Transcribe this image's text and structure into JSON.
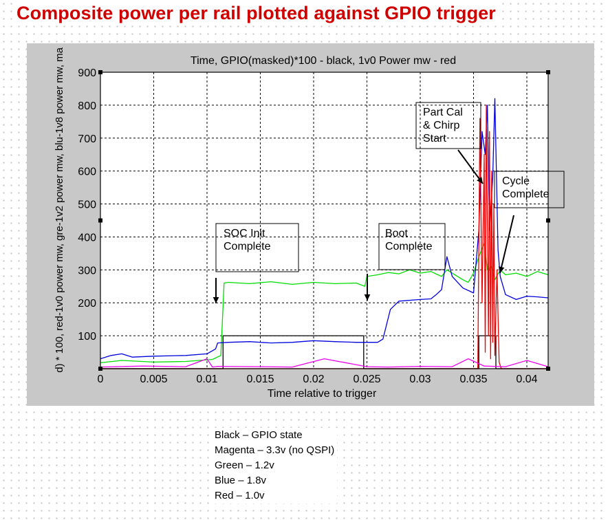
{
  "slide": {
    "title": "Composite power per rail plotted against GPIO trigger"
  },
  "legend_notes": [
    "Black – GPIO state",
    "Magenta – 3.3v (no QSPI)",
    "Green – 1.2v",
    "Blue – 1.8v",
    "Red – 1.0v"
  ],
  "chart_data": {
    "type": "line",
    "title": "Time, GPIO(masked)*100 - black, 1v0 Power mw - red",
    "xlabel": "Time relative to trigger",
    "ylabel": "d) * 100, red-1v0 power mw, gre-1v2 power mw,  blu-1v8 power mw,  ma",
    "xlim": [
      0,
      0.042
    ],
    "ylim": [
      0,
      900
    ],
    "xticks": [
      0,
      0.005,
      0.01,
      0.015,
      0.02,
      0.025,
      0.03,
      0.035,
      0.04
    ],
    "xtick_labels": [
      "0",
      "0.005",
      "0.01",
      "0.015",
      "0.02",
      "0.025",
      "0.03",
      "0.035",
      "0.04"
    ],
    "yticks": [
      100,
      200,
      300,
      400,
      500,
      600,
      700,
      800,
      900
    ],
    "ytick_labels": [
      "100",
      "200",
      "300",
      "400",
      "500",
      "600",
      "700",
      "800",
      "900"
    ],
    "grid": true,
    "series": [
      {
        "color": "#000000",
        "x": [
          0,
          0.0115,
          0.0115,
          0.0247,
          0.0247,
          0.0355,
          0.0355,
          0.0371,
          0.0371,
          0.042
        ],
        "y": [
          0,
          0,
          100,
          100,
          0,
          0,
          100,
          100,
          0,
          0
        ]
      },
      {
        "color": "#00dd00",
        "x": [
          0,
          0.002,
          0.005,
          0.008,
          0.0105,
          0.0113,
          0.0116,
          0.012,
          0.014,
          0.016,
          0.018,
          0.02,
          0.022,
          0.024,
          0.0248,
          0.025,
          0.026,
          0.027,
          0.028,
          0.029,
          0.03,
          0.031,
          0.032,
          0.0325,
          0.033,
          0.034,
          0.0345,
          0.035,
          0.0355,
          0.036,
          0.0363,
          0.0367,
          0.037,
          0.0375,
          0.038,
          0.039,
          0.04,
          0.041,
          0.042
        ],
        "y": [
          18,
          25,
          20,
          22,
          28,
          40,
          260,
          262,
          258,
          264,
          256,
          262,
          258,
          260,
          250,
          280,
          285,
          292,
          288,
          300,
          290,
          295,
          280,
          300,
          290,
          270,
          262,
          290,
          340,
          380,
          300,
          310,
          270,
          300,
          285,
          290,
          280,
          295,
          285
        ]
      },
      {
        "color": "#0000dd",
        "x": [
          0,
          0.001,
          0.002,
          0.003,
          0.005,
          0.008,
          0.01,
          0.0108,
          0.011,
          0.012,
          0.014,
          0.016,
          0.018,
          0.02,
          0.022,
          0.024,
          0.026,
          0.0265,
          0.0272,
          0.028,
          0.03,
          0.031,
          0.0315,
          0.032,
          0.0325,
          0.033,
          0.034,
          0.035,
          0.0355,
          0.0358,
          0.0361,
          0.0363,
          0.0365,
          0.0368,
          0.037,
          0.0373,
          0.0375,
          0.038,
          0.039,
          0.04,
          0.041,
          0.042
        ],
        "y": [
          30,
          40,
          45,
          35,
          38,
          40,
          45,
          60,
          78,
          80,
          82,
          78,
          80,
          85,
          82,
          80,
          80,
          90,
          180,
          205,
          210,
          212,
          225,
          240,
          340,
          280,
          245,
          230,
          420,
          720,
          650,
          800,
          420,
          580,
          820,
          360,
          280,
          225,
          210,
          220,
          218,
          215
        ]
      },
      {
        "color": "#ee0000",
        "x": [
          0,
          0.0354,
          0.0356,
          0.0358,
          0.036,
          0.0361,
          0.0362,
          0.0364,
          0.0365,
          0.0366,
          0.0367,
          0.0368,
          0.0369,
          0.037,
          0.0372,
          0.0374,
          0.0376,
          0.042
        ],
        "y": [
          0,
          0,
          760,
          200,
          650,
          50,
          800,
          100,
          720,
          30,
          600,
          80,
          500,
          40,
          300,
          20,
          0,
          0
        ]
      },
      {
        "color": "#ee00ee",
        "x": [
          0,
          0.004,
          0.008,
          0.01,
          0.0105,
          0.011,
          0.015,
          0.018,
          0.021,
          0.025,
          0.027,
          0.03,
          0.033,
          0.0345,
          0.036,
          0.038,
          0.04,
          0.042
        ],
        "y": [
          5,
          8,
          6,
          30,
          5,
          7,
          6,
          5,
          30,
          6,
          5,
          7,
          6,
          30,
          8,
          6,
          25,
          6
        ]
      }
    ],
    "annotations": [
      {
        "text": [
          "SOC Init",
          "Complete"
        ],
        "x": 0.0115,
        "y": 200
      },
      {
        "text": [
          "Boot",
          "Complete"
        ],
        "x": 0.0248,
        "y": 200
      },
      {
        "text": [
          "Part Cal",
          "& Chirp",
          "Start"
        ],
        "x": 0.0359,
        "y": 560
      },
      {
        "text": [
          "Cycle",
          "Complete"
        ],
        "x": 0.0372,
        "y": 290
      }
    ]
  }
}
